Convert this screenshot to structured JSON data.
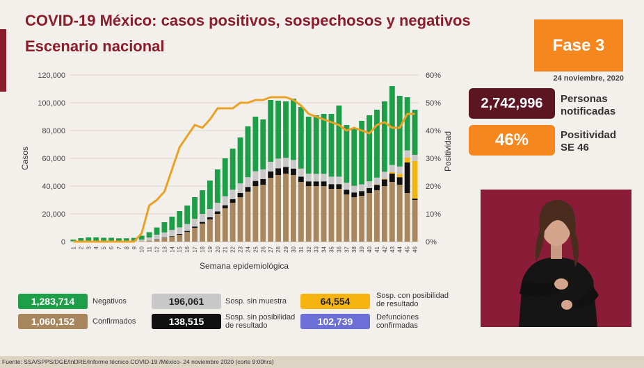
{
  "header": {
    "title_line1": "COVID-19 México: casos positivos, sospechosos y negativos",
    "title_line2": "Escenario nacional"
  },
  "phase": {
    "label": "Fase 3"
  },
  "report_date": "24 noviembre, 2020",
  "stats": {
    "notified": {
      "value": "2,742,996",
      "label_line1": "Personas",
      "label_line2": "notificadas"
    },
    "positivity": {
      "value": "46%",
      "label_line1": "Positividad",
      "label_line2": "SE 46"
    }
  },
  "legend": [
    {
      "value": "1,283,714",
      "label_line1": "Negativos",
      "label_line2": "",
      "color": "#1e9e48",
      "text_color": "#ffffff"
    },
    {
      "value": "196,061",
      "label_line1": "Sosp. sin muestra",
      "label_line2": "",
      "color": "#c8c8c8",
      "text_color": "#222222"
    },
    {
      "value": "64,554",
      "label_line1": "Sosp. con posibilidad",
      "label_line2": "de resultado",
      "color": "#f5b40f",
      "text_color": "#222222"
    },
    {
      "value": "1,060,152",
      "label_line1": "Confirmados",
      "label_line2": "",
      "color": "#a8875f",
      "text_color": "#ffffff"
    },
    {
      "value": "138,515",
      "label_line1": "Sosp. sin posibilidad",
      "label_line2": "de resultado",
      "color": "#111111",
      "text_color": "#ffffff"
    },
    {
      "value": "102,739",
      "label_line1": "Defunciones",
      "label_line2": "confirmadas",
      "color": "#6b6fd6",
      "text_color": "#ffffff"
    }
  ],
  "footer": "Fuente: SSA/SPPS/DGE/InDRE/Informe técnico.COVID-19 /México- 24 noviembre 2020 (corte 9:00hrs)",
  "chart_data": {
    "type": "bar",
    "stacked": true,
    "xlabel": "Semana epidemiológica",
    "ylabel": "Casos",
    "y2label": "Positividad",
    "ylim": [
      0,
      120000
    ],
    "yticks": [
      "0",
      "20,000",
      "40,000",
      "60,000",
      "80,000",
      "100,000",
      "120,000"
    ],
    "y2lim": [
      0,
      60
    ],
    "y2ticks": [
      "0%",
      "10%",
      "20%",
      "30%",
      "40%",
      "50%",
      "60%"
    ],
    "categories": [
      "1",
      "2",
      "3",
      "4",
      "5",
      "6",
      "7",
      "8",
      "9",
      "10",
      "11",
      "12",
      "13",
      "14",
      "15",
      "16",
      "17",
      "18",
      "19",
      "20",
      "21",
      "22",
      "23",
      "24",
      "25",
      "26",
      "27",
      "28",
      "29",
      "30",
      "31",
      "32",
      "33",
      "34",
      "35",
      "36",
      "37",
      "38",
      "39",
      "40",
      "41",
      "42",
      "43",
      "44",
      "45",
      "46"
    ],
    "series": [
      {
        "name": "Confirmados",
        "color": "#a8875f",
        "values": [
          0,
          0,
          0,
          0,
          0,
          0,
          0,
          0,
          0,
          300,
          800,
          1500,
          2500,
          3500,
          5000,
          7000,
          10000,
          13000,
          16000,
          20000,
          24000,
          28000,
          32000,
          36000,
          40000,
          41000,
          46000,
          48000,
          49000,
          48000,
          43000,
          40000,
          40000,
          40000,
          38000,
          38000,
          34000,
          32000,
          33000,
          35000,
          37000,
          40000,
          43000,
          41000,
          35000,
          30000
        ]
      },
      {
        "name": "Sosp. sin posibilidad de resultado",
        "color": "#111111",
        "values": [
          0,
          0,
          0,
          0,
          0,
          0,
          0,
          0,
          0,
          0,
          0,
          200,
          300,
          400,
          500,
          700,
          900,
          1200,
          1500,
          1800,
          2200,
          2600,
          3000,
          3400,
          3700,
          4000,
          4500,
          4800,
          4800,
          4600,
          3800,
          3400,
          3400,
          3400,
          3400,
          3400,
          3400,
          3400,
          3400,
          3600,
          3900,
          4800,
          6000,
          5400,
          22000,
          1000
        ]
      },
      {
        "name": "Sosp. con posibilidad de resultado",
        "color": "#f5b40f",
        "values": [
          0,
          0,
          0,
          0,
          0,
          0,
          0,
          0,
          0,
          0,
          0,
          0,
          0,
          0,
          0,
          0,
          0,
          0,
          0,
          0,
          0,
          0,
          0,
          0,
          0,
          0,
          0,
          0,
          0,
          0,
          0,
          0,
          0,
          0,
          0,
          0,
          0,
          0,
          0,
          0,
          300,
          500,
          1000,
          2500,
          3500,
          27000
        ]
      },
      {
        "name": "Sosp. sin muestra",
        "color": "#c8c8c8",
        "values": [
          300,
          500,
          600,
          600,
          500,
          500,
          400,
          400,
          500,
          1200,
          2200,
          3300,
          3800,
          4500,
          4800,
          5000,
          5500,
          5800,
          6000,
          6200,
          6500,
          6800,
          6900,
          7000,
          7000,
          7000,
          7000,
          7000,
          6500,
          6200,
          5800,
          5500,
          5400,
          5400,
          5400,
          5400,
          5000,
          4800,
          4800,
          4800,
          4900,
          5000,
          5200,
          5200,
          5200,
          4500
        ]
      },
      {
        "name": "Negativos",
        "color": "#1e9e48",
        "values": [
          1200,
          2000,
          2500,
          2500,
          2300,
          2300,
          2000,
          2000,
          2200,
          2800,
          3800,
          5200,
          7400,
          9600,
          11700,
          13300,
          15600,
          17000,
          20500,
          24000,
          27300,
          29600,
          33100,
          36600,
          39300,
          36000,
          44500,
          41700,
          40700,
          44200,
          44400,
          41100,
          42200,
          43200,
          45200,
          51200,
          41600,
          41800,
          45800,
          47600,
          48900,
          50700,
          56800,
          50900,
          38300,
          32500
        ]
      },
      {
        "name": "Positividad",
        "type": "line",
        "color": "#e9a224",
        "values": [
          0,
          0,
          0,
          0,
          0,
          0,
          0,
          0,
          0,
          3,
          13,
          15,
          18,
          26,
          34,
          38,
          42,
          41,
          44,
          48,
          48,
          48,
          50,
          50,
          51,
          51,
          52,
          52,
          52,
          51,
          49,
          46,
          45,
          44,
          43,
          42,
          40,
          41,
          40,
          39,
          42,
          43,
          41,
          41,
          46,
          46
        ]
      }
    ]
  }
}
